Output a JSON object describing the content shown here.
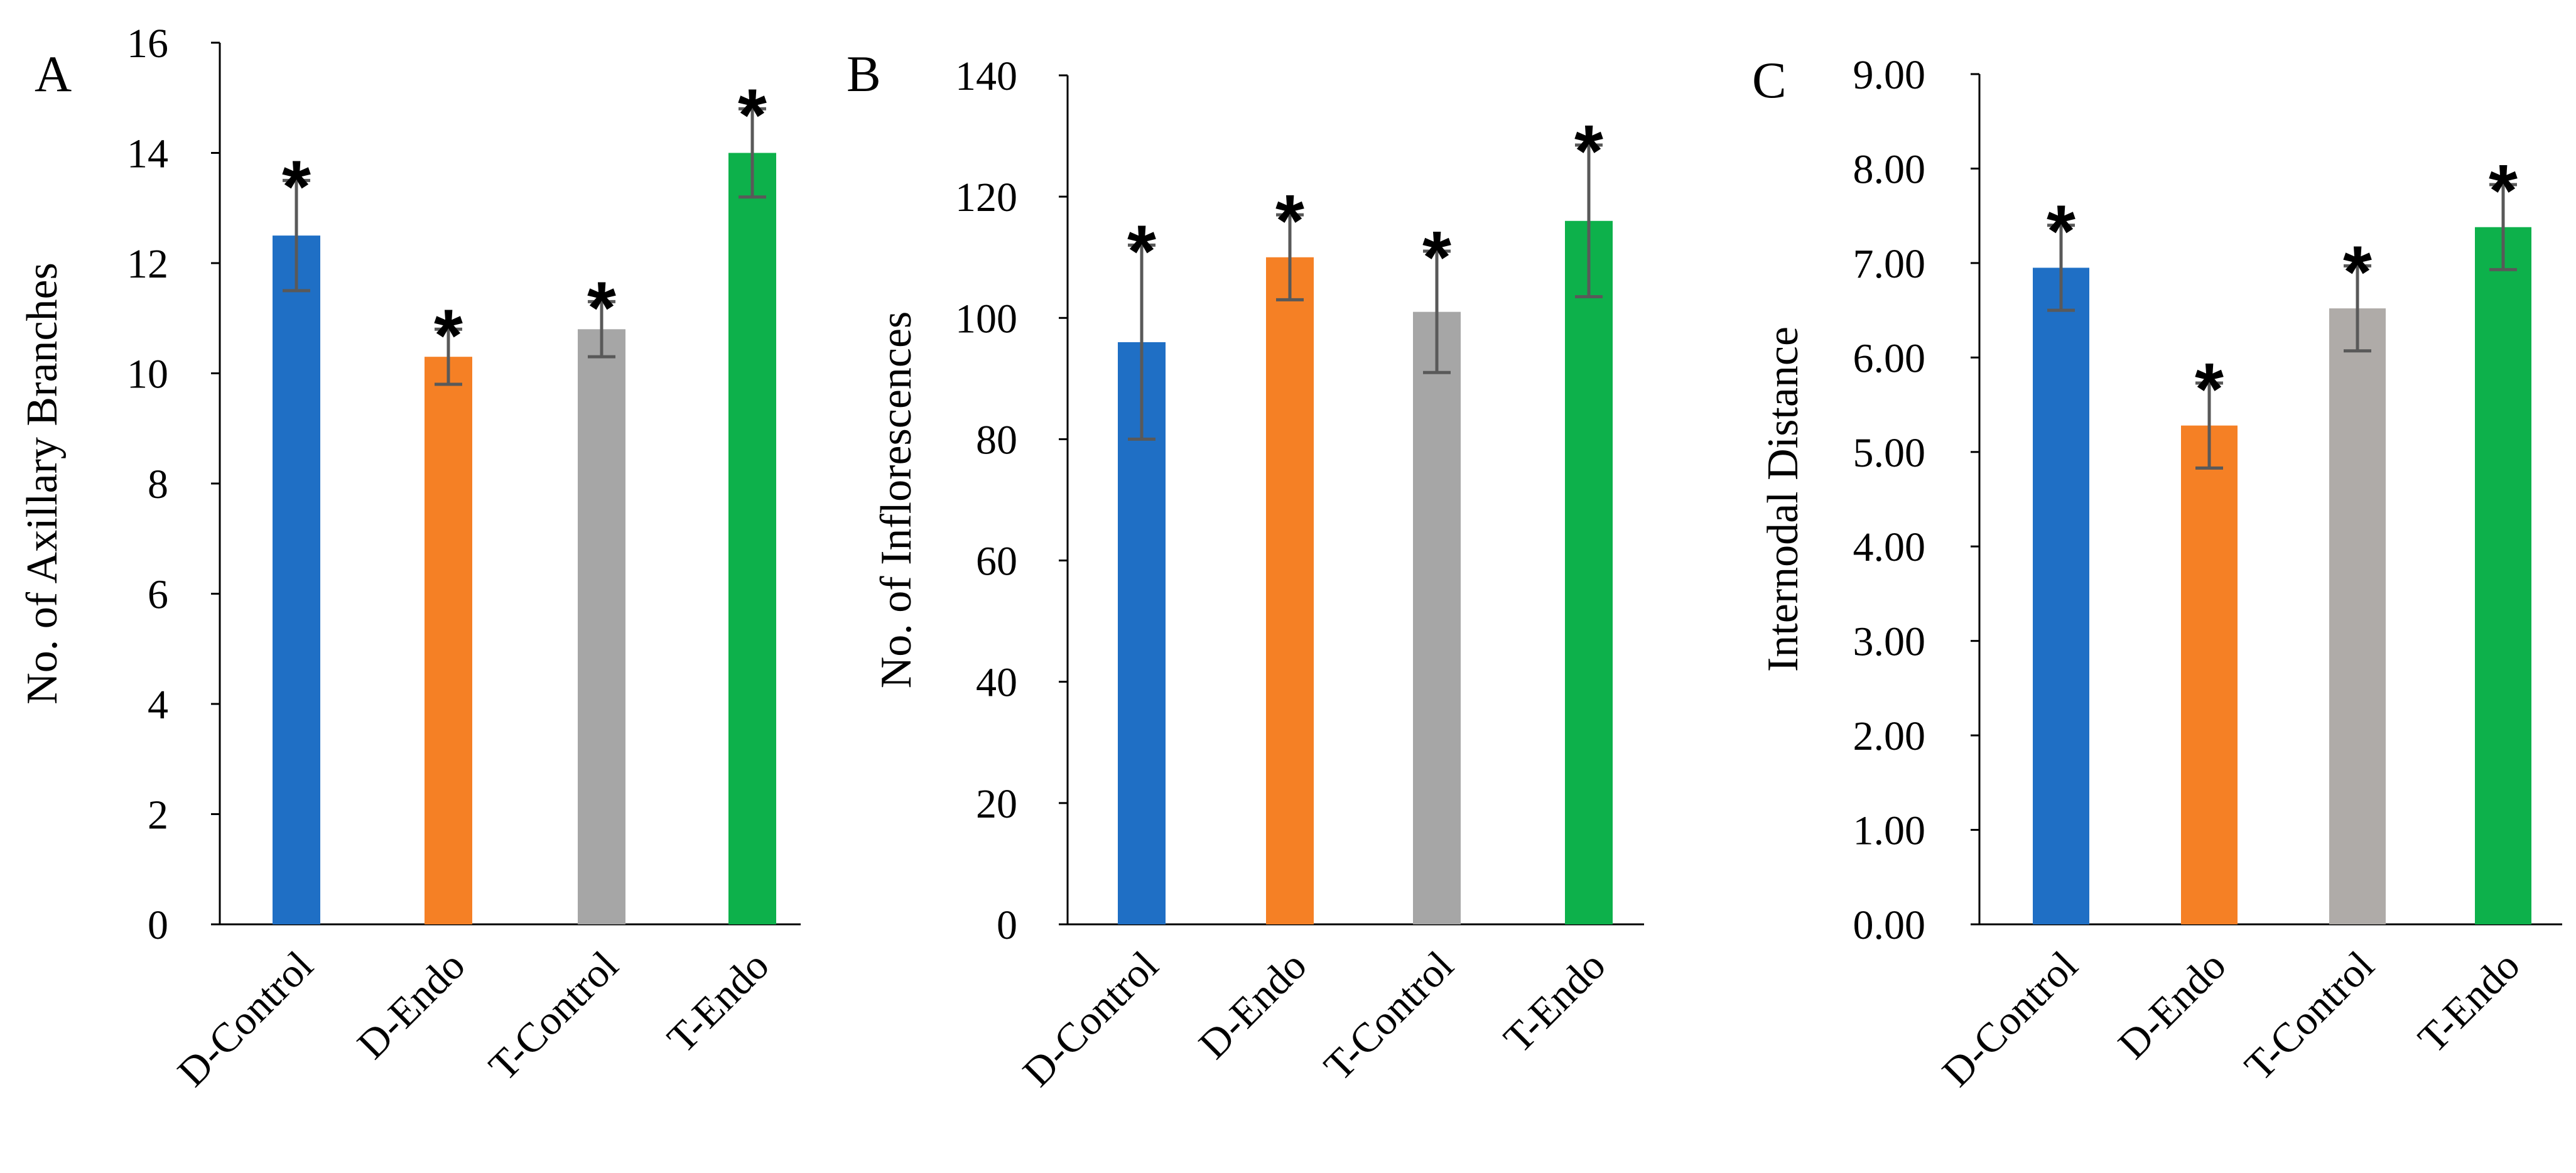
{
  "chart_data": [
    {
      "type": "bar",
      "panel_label": "A",
      "ylabel": "No. of Axillary Branches",
      "xlabel": "",
      "categories": [
        "D-Control",
        "D-Endo",
        "T-Control",
        "T-Endo"
      ],
      "values": [
        12.5,
        10.3,
        10.8,
        14.0
      ],
      "errors": [
        1.0,
        0.5,
        0.5,
        0.8
      ],
      "colors": [
        "#1f6fc5",
        "#f58025",
        "#a6a6a6",
        "#0db14b"
      ],
      "significance": [
        "*",
        "*",
        "*",
        "*"
      ],
      "ylim": [
        0,
        16
      ],
      "yticks": [
        "0",
        "2",
        "4",
        "6",
        "8",
        "10",
        "12",
        "14",
        "16"
      ],
      "grid": false
    },
    {
      "type": "bar",
      "panel_label": "B",
      "ylabel": "No. of Inflorescences",
      "xlabel": "",
      "categories": [
        "D-Control",
        "D-Endo",
        "T-Control",
        "T-Endo"
      ],
      "values": [
        96,
        110,
        101,
        116
      ],
      "errors": [
        16,
        7,
        10,
        12.5
      ],
      "colors": [
        "#1f6fc5",
        "#f58025",
        "#a6a6a6",
        "#0db14b"
      ],
      "significance": [
        "*",
        "*",
        "*",
        "*"
      ],
      "ylim": [
        0,
        140
      ],
      "yticks": [
        "0",
        "20",
        "40",
        "60",
        "80",
        "100",
        "120",
        "140"
      ],
      "grid": false
    },
    {
      "type": "bar",
      "panel_label": "C",
      "ylabel": "Internodal Distance",
      "xlabel": "",
      "categories": [
        "D-Control",
        "D-Endo",
        "T-Control",
        "T-Endo"
      ],
      "values": [
        6.95,
        5.28,
        6.52,
        7.38
      ],
      "errors": [
        0.45,
        0.45,
        0.45,
        0.45
      ],
      "colors": [
        "#1f6fc5",
        "#f58025",
        "#afaba8",
        "#0db14b"
      ],
      "significance": [
        "*",
        "*",
        "*",
        "*"
      ],
      "ylim": [
        0,
        9
      ],
      "yticks": [
        "0.00",
        "1.00",
        "2.00",
        "3.00",
        "4.00",
        "5.00",
        "6.00",
        "7.00",
        "8.00",
        "9.00"
      ],
      "grid": false
    }
  ]
}
